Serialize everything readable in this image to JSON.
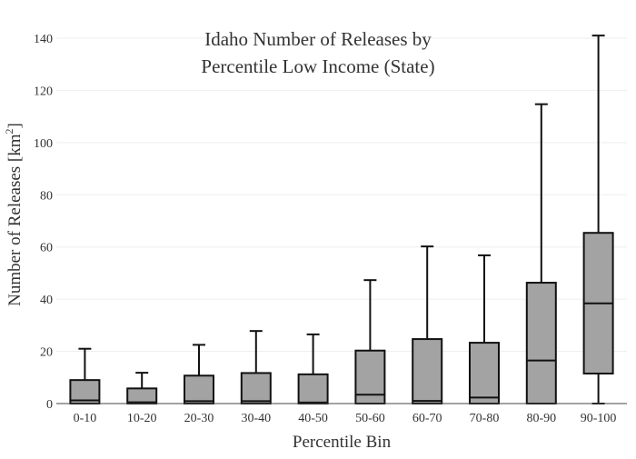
{
  "chart_data": {
    "type": "box",
    "title_lines": [
      "Idaho Number of Releases by",
      "Percentile Low Income (State)"
    ],
    "xlabel": "Percentile Bin",
    "ylabel_main": "Number of Releases  [km",
    "ylabel_sup": "2",
    "ylabel_tail": "]",
    "ylim": [
      0,
      140
    ],
    "yticks": [
      "0",
      "20",
      "40",
      "60",
      "80",
      "100",
      "120",
      "140"
    ],
    "grid": true,
    "legend": "none",
    "colors": {
      "box_fill": "#a3a3a3",
      "line": "#111111",
      "grid": "#eeeeee"
    },
    "categories": [
      "0-10",
      "10-20",
      "20-30",
      "30-40",
      "40-50",
      "50-60",
      "60-70",
      "70-80",
      "80-90",
      "90-100"
    ],
    "boxes": [
      {
        "min": 0,
        "q1": 0,
        "median": 1.2,
        "q3": 9.0,
        "max": 21.0
      },
      {
        "min": 0,
        "q1": 0,
        "median": 0.5,
        "q3": 5.8,
        "max": 11.8
      },
      {
        "min": 0,
        "q1": 0,
        "median": 0.9,
        "q3": 10.7,
        "max": 22.5
      },
      {
        "min": 0,
        "q1": 0,
        "median": 0.9,
        "q3": 11.7,
        "max": 27.8
      },
      {
        "min": 0,
        "q1": 0,
        "median": 0.4,
        "q3": 11.2,
        "max": 26.5
      },
      {
        "min": 0,
        "q1": 0,
        "median": 3.4,
        "q3": 20.3,
        "max": 47.3
      },
      {
        "min": 0,
        "q1": 0,
        "median": 1.0,
        "q3": 24.7,
        "max": 60.2
      },
      {
        "min": 0,
        "q1": 0,
        "median": 2.3,
        "q3": 23.3,
        "max": 56.8
      },
      {
        "min": 0,
        "q1": 0,
        "median": 16.5,
        "q3": 46.3,
        "max": 114.7
      },
      {
        "min": 0,
        "q1": 11.5,
        "median": 38.4,
        "q3": 65.4,
        "max": 141.0
      }
    ]
  }
}
